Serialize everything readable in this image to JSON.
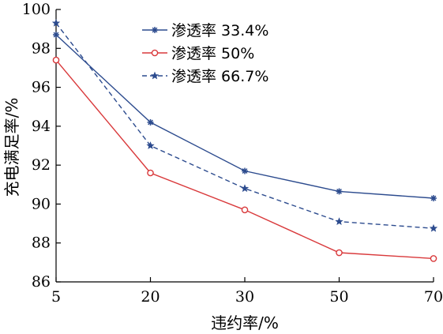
{
  "chart_data": {
    "type": "line",
    "title": "",
    "xlabel": "违约率/%",
    "ylabel": "充电满足率/%",
    "categories": [
      "5",
      "20",
      "30",
      "50",
      "70"
    ],
    "y_ticks": [
      "86",
      "88",
      "90",
      "92",
      "94",
      "96",
      "98",
      "100"
    ],
    "ylim": [
      86,
      100
    ],
    "grid": false,
    "legend_position": "top-center",
    "series": [
      {
        "name": "渗透率 33.4%",
        "values": [
          98.7,
          94.2,
          91.7,
          90.65,
          90.3
        ],
        "color": "#2c4b8e",
        "marker": "asterisk",
        "dash": "solid"
      },
      {
        "name": "渗透率 50%",
        "values": [
          97.4,
          91.6,
          89.7,
          87.5,
          87.2
        ],
        "color": "#d9393b",
        "marker": "circle",
        "dash": "solid"
      },
      {
        "name": "渗透率 66.7%",
        "values": [
          99.3,
          93.0,
          90.8,
          89.1,
          88.75
        ],
        "color": "#2c4b8e",
        "marker": "star",
        "dash": "dashed"
      }
    ]
  }
}
